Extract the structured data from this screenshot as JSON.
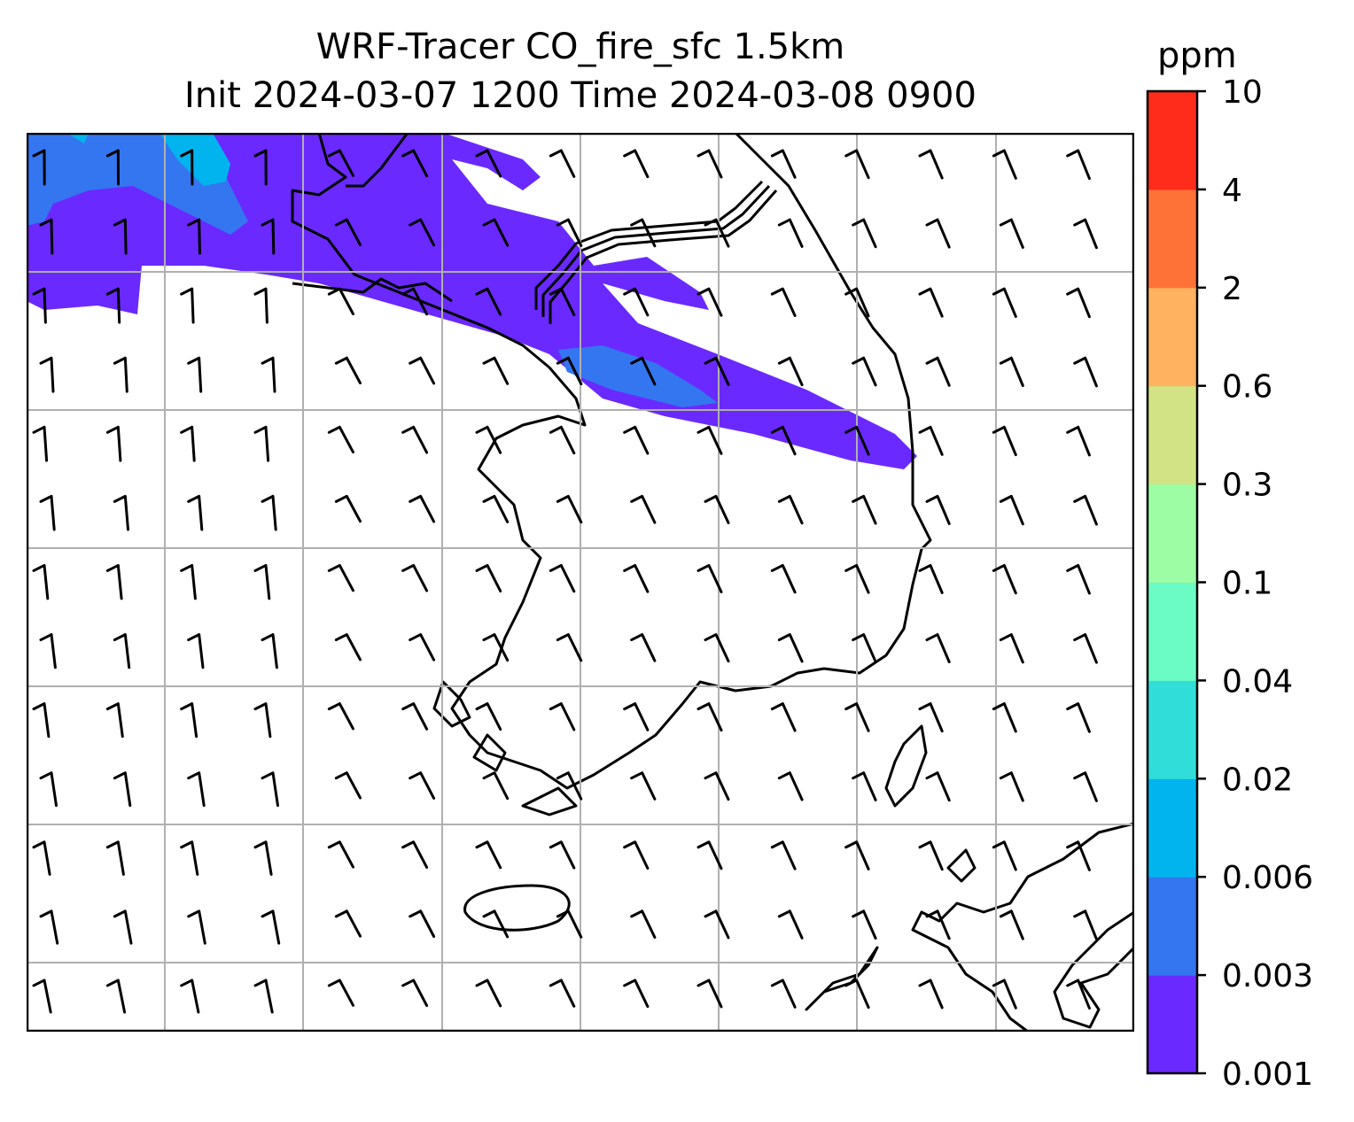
{
  "title": {
    "line1": "WRF-Tracer CO_fire_sfc 1.5km",
    "line2": "Init 2024-03-07 1200 Time 2024-03-08 0900"
  },
  "colorbar": {
    "unit": "ppm",
    "ticks": [
      "0.001",
      "0.003",
      "0.006",
      "0.02",
      "0.04",
      "0.1",
      "0.3",
      "0.6",
      "2",
      "4",
      "10"
    ],
    "colors": [
      "#6a29ff",
      "#3476f0",
      "#02b4ee",
      "#30ddd8",
      "#6bfbc4",
      "#9cfda4",
      "#d1e384",
      "#ffb25f",
      "#ff7237",
      "#ff2c1c"
    ]
  },
  "map": {
    "field": "CO_fire_sfc",
    "plume_colors": {
      "low": "#6a29ff",
      "mid": "#3476f0",
      "high": "#02b4ee"
    },
    "grid": true,
    "wind_barbs": true
  }
}
